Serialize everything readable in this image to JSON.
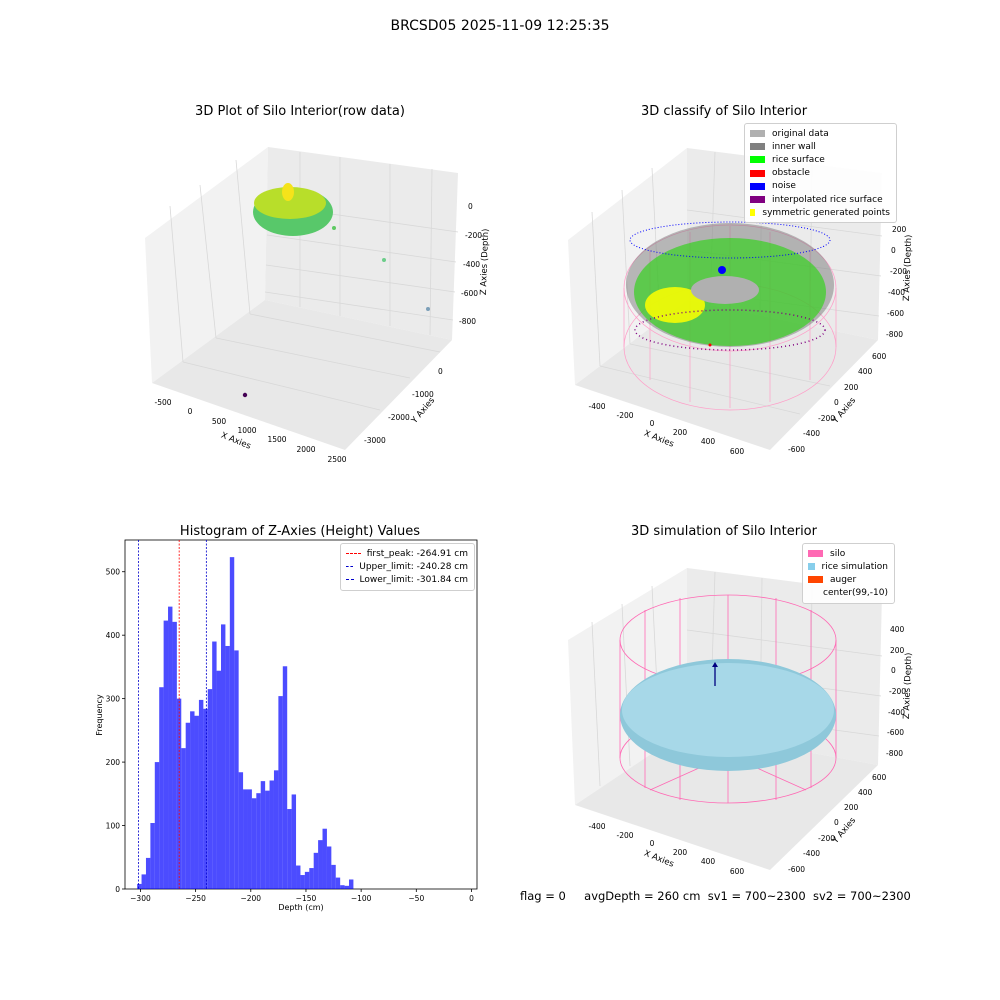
{
  "suptitle": "BRCSD05 2025-11-09 12:25:35",
  "panels": {
    "raw": {
      "title": "3D Plot of Silo Interior(row data)",
      "xlabel": "X Axies",
      "ylabel": "Y Axies",
      "zlabel": "Z Axies (Depth)",
      "xticks": [
        "-500",
        "0",
        "500",
        "1000",
        "1500",
        "2000",
        "2500"
      ],
      "yticks": [
        "0",
        "-1000",
        "-2000",
        "-3000"
      ],
      "zticks": [
        "0",
        "-200",
        "-400",
        "-600",
        "-800"
      ]
    },
    "classify": {
      "title": "3D classify of Silo Interior",
      "xlabel": "X Axies",
      "ylabel": "Y Axies",
      "zlabel": "Z Axies (Depth)",
      "xticks": [
        "-400",
        "-200",
        "0",
        "200",
        "400",
        "600"
      ],
      "yticks": [
        "600",
        "400",
        "200",
        "0",
        "-200",
        "-400",
        "-600"
      ],
      "zticks": [
        "200",
        "0",
        "-200",
        "-400",
        "-600",
        "-800"
      ],
      "legend": [
        {
          "label": "original data",
          "color": "#b0b0b0"
        },
        {
          "label": "inner wall",
          "color": "#808080"
        },
        {
          "label": "rice surface",
          "color": "#00ff00"
        },
        {
          "label": "obstacle",
          "color": "#ff0000"
        },
        {
          "label": "noise",
          "color": "#0000ff"
        },
        {
          "label": "interpolated rice surface",
          "color": "#800080"
        },
        {
          "label": "symmetric generated points",
          "color": "#ffff00"
        }
      ]
    },
    "simulation": {
      "title": "3D simulation of Silo Interior",
      "xlabel": "X Axies",
      "ylabel": "Y Axies",
      "zlabel": "Z Axies (Depth)",
      "xticks": [
        "-400",
        "-200",
        "0",
        "200",
        "400",
        "600"
      ],
      "yticks": [
        "600",
        "400",
        "200",
        "0",
        "-200",
        "-400",
        "-600"
      ],
      "zticks": [
        "400",
        "200",
        "0",
        "-200",
        "-400",
        "-600",
        "-800"
      ],
      "legend": [
        {
          "label": "silo",
          "color": "#ff69b4"
        },
        {
          "label": "rice simulation",
          "color": "#87ceeb"
        },
        {
          "label": "auger",
          "color": "#ff4500"
        },
        {
          "label": "center(99,-10)",
          "color": ""
        }
      ]
    }
  },
  "status": {
    "flag": "flag = 0",
    "avg": "avgDepth = 260 cm",
    "sv1": "sv1 = 700~2300",
    "sv2": "sv2 = 700~2300"
  },
  "chart_data": {
    "type": "bar",
    "title": "Histogram of Z-Axies (Height) Values",
    "xlabel": "Depth (cm)",
    "ylabel": "Frequency",
    "xlim": [
      -314,
      5
    ],
    "ylim": [
      0,
      550
    ],
    "xticks": [
      -300,
      -250,
      -200,
      -150,
      -100,
      -50,
      0
    ],
    "yticks": [
      0,
      100,
      200,
      300,
      400,
      500
    ],
    "color": "#0000ff",
    "bins": [
      {
        "x0": -303.0,
        "x1": -299.0,
        "v": 8
      },
      {
        "x0": -299.0,
        "x1": -295.0,
        "v": 23
      },
      {
        "x0": -295.0,
        "x1": -291.0,
        "v": 49
      },
      {
        "x0": -291.0,
        "x1": -287.0,
        "v": 104
      },
      {
        "x0": -287.0,
        "x1": -283.0,
        "v": 200
      },
      {
        "x0": -283.0,
        "x1": -279.0,
        "v": 318
      },
      {
        "x0": -279.0,
        "x1": -275.0,
        "v": 423
      },
      {
        "x0": -275.0,
        "x1": -271.0,
        "v": 445
      },
      {
        "x0": -271.0,
        "x1": -267.0,
        "v": 421
      },
      {
        "x0": -267.0,
        "x1": -263.0,
        "v": 300
      },
      {
        "x0": -263.0,
        "x1": -259.0,
        "v": 222
      },
      {
        "x0": -259.0,
        "x1": -255.0,
        "v": 262
      },
      {
        "x0": -255.0,
        "x1": -251.0,
        "v": 280
      },
      {
        "x0": -251.0,
        "x1": -247.0,
        "v": 273
      },
      {
        "x0": -247.0,
        "x1": -243.0,
        "v": 298
      },
      {
        "x0": -243.0,
        "x1": -239.0,
        "v": 284
      },
      {
        "x0": -239.0,
        "x1": -235.0,
        "v": 315
      },
      {
        "x0": -235.0,
        "x1": -231.0,
        "v": 390
      },
      {
        "x0": -231.0,
        "x1": -227.0,
        "v": 344
      },
      {
        "x0": -227.0,
        "x1": -223.0,
        "v": 417
      },
      {
        "x0": -223.0,
        "x1": -219.0,
        "v": 383
      },
      {
        "x0": -219.0,
        "x1": -215.0,
        "v": 523
      },
      {
        "x0": -215.0,
        "x1": -211.0,
        "v": 376
      },
      {
        "x0": -211.0,
        "x1": -207.0,
        "v": 184
      },
      {
        "x0": -207.0,
        "x1": -203.0,
        "v": 157
      },
      {
        "x0": -203.0,
        "x1": -199.0,
        "v": 157
      },
      {
        "x0": -199.0,
        "x1": -195.0,
        "v": 143
      },
      {
        "x0": -195.0,
        "x1": -191.0,
        "v": 151
      },
      {
        "x0": -191.0,
        "x1": -187.0,
        "v": 170
      },
      {
        "x0": -187.0,
        "x1": -183.0,
        "v": 155
      },
      {
        "x0": -183.0,
        "x1": -179.0,
        "v": 171
      },
      {
        "x0": -179.0,
        "x1": -175.0,
        "v": 187
      },
      {
        "x0": -175.0,
        "x1": -171.0,
        "v": 304
      },
      {
        "x0": -171.0,
        "x1": -167.0,
        "v": 351
      },
      {
        "x0": -167.0,
        "x1": -163.0,
        "v": 126
      },
      {
        "x0": -163.0,
        "x1": -159.0,
        "v": 149
      },
      {
        "x0": -159.0,
        "x1": -155.0,
        "v": 37
      },
      {
        "x0": -155.0,
        "x1": -151.0,
        "v": 22
      },
      {
        "x0": -151.0,
        "x1": -147.0,
        "v": 27
      },
      {
        "x0": -147.0,
        "x1": -143.0,
        "v": 33
      },
      {
        "x0": -143.0,
        "x1": -139.0,
        "v": 57
      },
      {
        "x0": -139.0,
        "x1": -135.0,
        "v": 77
      },
      {
        "x0": -135.0,
        "x1": -131.0,
        "v": 95
      },
      {
        "x0": -131.0,
        "x1": -127.0,
        "v": 67
      },
      {
        "x0": -127.0,
        "x1": -123.0,
        "v": 38
      },
      {
        "x0": -123.0,
        "x1": -119.0,
        "v": 18
      },
      {
        "x0": -119.0,
        "x1": -115.0,
        "v": 6
      },
      {
        "x0": -115.0,
        "x1": -111.0,
        "v": 5
      },
      {
        "x0": -111.0,
        "x1": -107.0,
        "v": 15
      }
    ],
    "vlines": [
      {
        "x": -264.91,
        "label": "first_peak: -264.91 cm",
        "color": "#ff0000"
      },
      {
        "x": -240.28,
        "label": "Upper_limit: -240.28 cm",
        "color": "#0000cc"
      },
      {
        "x": -301.84,
        "label": "Lower_limit: -301.84 cm",
        "color": "#0000cc"
      }
    ]
  }
}
